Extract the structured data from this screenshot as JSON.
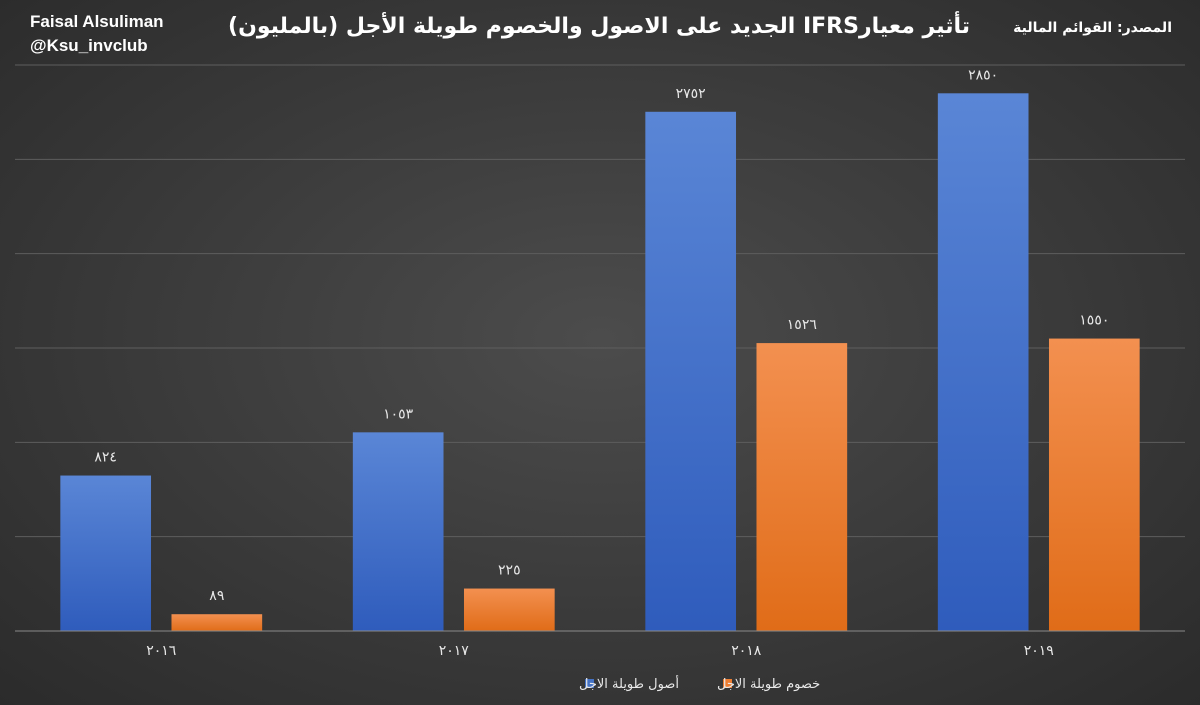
{
  "header": {
    "author_name": "Faisal Alsuliman",
    "author_handle": "@Ksu_invclub",
    "source": "المصدر: القوائم المالية"
  },
  "chart_data": {
    "type": "bar",
    "title": "تأثير معيارIFRS الجديد على الاصول والخصوم طويلة الأجل (بالمليون)",
    "categories": [
      "٢٠١٦",
      "٢٠١٧",
      "٢٠١٨",
      "٢٠١٩"
    ],
    "x": [
      2016,
      2017,
      2018,
      2019
    ],
    "series": [
      {
        "name": "أصول طويلة الاجل",
        "values": [
          824,
          1053,
          2752,
          2850
        ],
        "labels": [
          "٨٢٤",
          "١٠٥٣",
          "٢٧٥٢",
          "٢٨٥٠"
        ],
        "color": "#4472c4"
      },
      {
        "name": "خصوم طويلة الاجل",
        "values": [
          89,
          225,
          1526,
          1550
        ],
        "labels": [
          "٨٩",
          "٢٢٥",
          "١٥٢٦",
          "١٥٥٠"
        ],
        "color": "#ed7d31"
      }
    ],
    "ylim": [
      0,
      3000
    ],
    "grid": true,
    "legend": "bottom-center"
  }
}
